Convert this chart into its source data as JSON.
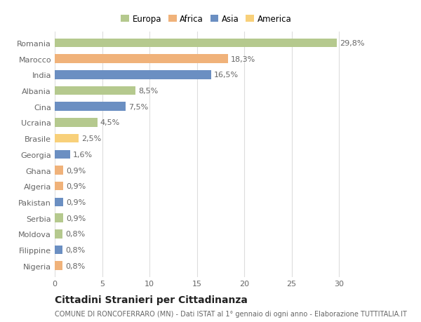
{
  "countries": [
    "Romania",
    "Marocco",
    "India",
    "Albania",
    "Cina",
    "Ucraina",
    "Brasile",
    "Georgia",
    "Ghana",
    "Algeria",
    "Pakistan",
    "Serbia",
    "Moldova",
    "Filippine",
    "Nigeria"
  ],
  "values": [
    29.8,
    18.3,
    16.5,
    8.5,
    7.5,
    4.5,
    2.5,
    1.6,
    0.9,
    0.9,
    0.9,
    0.9,
    0.8,
    0.8,
    0.8
  ],
  "labels": [
    "29,8%",
    "18,3%",
    "16,5%",
    "8,5%",
    "7,5%",
    "4,5%",
    "2,5%",
    "1,6%",
    "0,9%",
    "0,9%",
    "0,9%",
    "0,9%",
    "0,8%",
    "0,8%",
    "0,8%"
  ],
  "colors": [
    "#b5c98e",
    "#f0b27a",
    "#6b8fc2",
    "#b5c98e",
    "#6b8fc2",
    "#b5c98e",
    "#f8d07a",
    "#6b8fc2",
    "#f0b27a",
    "#f0b27a",
    "#6b8fc2",
    "#b5c98e",
    "#b5c98e",
    "#6b8fc2",
    "#f0b27a"
  ],
  "continent": [
    "Europa",
    "Africa",
    "Asia",
    "Europa",
    "Asia",
    "Europa",
    "America",
    "Asia",
    "Africa",
    "Africa",
    "Asia",
    "Europa",
    "Europa",
    "Asia",
    "Africa"
  ],
  "legend_labels": [
    "Europa",
    "Africa",
    "Asia",
    "America"
  ],
  "legend_colors": [
    "#b5c98e",
    "#f0b27a",
    "#6b8fc2",
    "#f8d07a"
  ],
  "xlim": [
    0,
    32
  ],
  "xticks": [
    0,
    5,
    10,
    15,
    20,
    25,
    30
  ],
  "title": "Cittadini Stranieri per Cittadinanza",
  "subtitle": "COMUNE DI RONCOFERRARO (MN) - Dati ISTAT al 1° gennaio di ogni anno - Elaborazione TUTTITALIA.IT",
  "background_color": "#ffffff",
  "bar_height": 0.55,
  "grid_color": "#dddddd",
  "text_color": "#666666",
  "label_fontsize": 8,
  "tick_fontsize": 8,
  "title_fontsize": 10,
  "subtitle_fontsize": 7
}
